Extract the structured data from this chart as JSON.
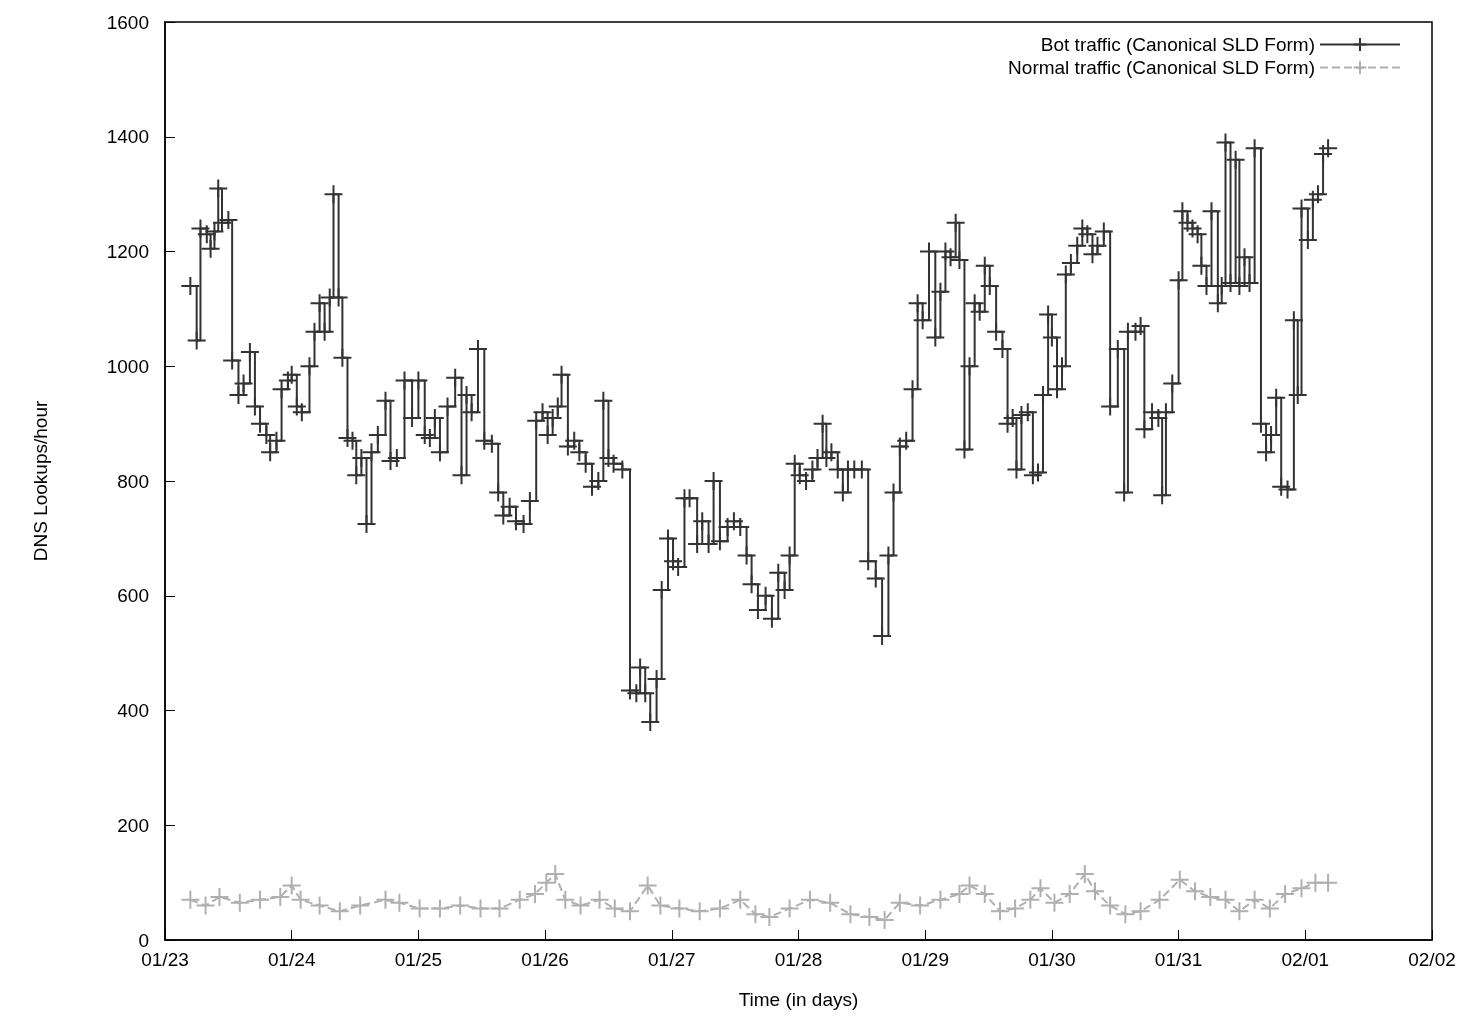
{
  "chart_data": {
    "type": "line",
    "xlabel": "Time (in days)",
    "ylabel": "DNS Lookups/hour",
    "xlim": [
      "--01-23",
      "--02-02"
    ],
    "xticks": [
      {
        "value": "--01-23",
        "label": "01/23"
      },
      {
        "value": "--01-24",
        "label": "01/24"
      },
      {
        "value": "--01-25",
        "label": "01/25"
      },
      {
        "value": "--01-26",
        "label": "01/26"
      },
      {
        "value": "--01-27",
        "label": "01/27"
      },
      {
        "value": "--01-28",
        "label": "01/28"
      },
      {
        "value": "--01-29",
        "label": "01/29"
      },
      {
        "value": "--01-30",
        "label": "01/30"
      },
      {
        "value": "--01-31",
        "label": "01/31"
      },
      {
        "value": "--02-01",
        "label": "02/01"
      },
      {
        "value": "--02-02",
        "label": "02/02"
      }
    ],
    "ylim": [
      0,
      1600
    ],
    "yticks": [
      0,
      200,
      400,
      600,
      800,
      1000,
      1200,
      1400,
      1600
    ],
    "grid": false,
    "legend": "top right",
    "series": [
      {
        "name": "Bot traffic (Canonical SLD Form)",
        "type": "step",
        "color": "#333333",
        "marker": "cross",
        "line_style": "solid",
        "x": [
          "--01-23T04:48",
          "--01-23T06:00",
          "--01-23T06:43",
          "--01-23T07:55",
          "--01-23T08:38",
          "--01-23T09:22",
          "--01-23T10:05",
          "--01-23T10:48",
          "--01-23T12:00",
          "--01-23T12:43",
          "--01-23T13:55",
          "--01-23T14:53",
          "--01-23T16:05",
          "--01-23T17:02",
          "--01-23T18:00",
          "--01-23T19:12",
          "--01-23T19:55",
          "--01-23T21:07",
          "--01-23T22:05",
          "--01-23T23:17",
          "--01-24T00:00",
          "--01-24T00:58",
          "--01-24T01:55",
          "--01-24T03:22",
          "--01-24T04:19",
          "--01-24T05:17",
          "--01-24T06:14",
          "--01-24T07:12",
          "--01-24T07:55",
          "--01-24T08:53",
          "--01-24T09:36",
          "--01-24T10:34",
          "--01-24T11:31",
          "--01-24T12:14",
          "--01-24T13:12",
          "--01-24T14:10",
          "--01-24T15:07",
          "--01-24T16:19",
          "--01-24T17:46",
          "--01-24T18:43",
          "--01-24T19:55",
          "--01-24T21:22",
          "--01-24T22:48",
          "--01-25T00:00",
          "--01-25T01:12",
          "--01-25T02:10",
          "--01-25T03:07",
          "--01-25T04:05",
          "--01-25T05:31",
          "--01-25T06:58",
          "--01-25T08:10",
          "--01-25T09:07",
          "--01-25T10:05",
          "--01-25T11:17",
          "--01-25T12:29",
          "--01-25T13:55",
          "--01-25T15:07",
          "--01-25T16:05",
          "--01-25T17:17",
          "--01-25T18:29",
          "--01-25T19:55",
          "--01-25T21:07",
          "--01-25T22:19",
          "--01-25T23:31",
          "--01-26T00:29",
          "--01-26T01:26",
          "--01-26T02:24",
          "--01-26T03:07",
          "--01-26T04:19",
          "--01-26T05:31",
          "--01-26T06:29",
          "--01-26T07:41",
          "--01-26T08:53",
          "--01-26T10:05",
          "--01-26T11:02",
          "--01-26T12:00",
          "--01-26T12:58",
          "--01-26T14:38",
          "--01-26T16:05",
          "--01-26T17:17",
          "--01-26T18:00",
          "--01-26T18:58",
          "--01-26T19:55",
          "--01-26T21:07",
          "--01-26T22:05",
          "--01-26T23:17",
          "--01-27T00:14",
          "--01-27T01:12",
          "--01-27T02:24",
          "--01-27T03:22",
          "--01-27T04:48",
          "--01-27T05:46",
          "--01-27T06:58",
          "--01-27T07:55",
          "--01-27T09:07",
          "--01-27T10:34",
          "--01-27T11:46",
          "--01-27T12:58",
          "--01-27T14:10",
          "--01-27T15:07",
          "--01-27T16:19",
          "--01-27T17:46",
          "--01-27T18:58",
          "--01-27T20:10",
          "--01-27T21:22",
          "--01-27T22:19",
          "--01-27T23:17",
          "--01-28T00:14",
          "--01-28T01:26",
          "--01-28T02:38",
          "--01-28T03:36",
          "--01-28T04:34",
          "--01-28T05:17",
          "--01-28T06:14",
          "--01-28T07:26",
          "--01-28T08:24",
          "--01-28T09:22",
          "--01-28T10:34",
          "--01-28T12:00",
          "--01-28T13:12",
          "--01-28T14:38",
          "--01-28T15:50",
          "--01-28T17:02",
          "--01-28T18:00",
          "--01-28T19:12",
          "--01-28T20:24",
          "--01-28T21:36",
          "--01-28T22:34",
          "--01-28T23:31",
          "--01-29T00:43",
          "--01-29T01:55",
          "--01-29T02:53",
          "--01-29T03:50",
          "--01-29T04:48",
          "--01-29T05:46",
          "--01-29T06:29",
          "--01-29T07:26",
          "--01-29T08:24",
          "--01-29T09:22",
          "--01-29T10:19",
          "--01-29T11:17",
          "--01-29T12:14",
          "--01-29T13:26",
          "--01-29T14:38",
          "--01-29T15:36",
          "--01-29T16:34",
          "--01-29T17:17",
          "--01-29T18:14",
          "--01-29T19:26",
          "--01-29T20:24",
          "--01-29T21:22",
          "--01-29T22:19",
          "--01-29T23:17",
          "--01-30T00:00",
          "--01-30T00:58",
          "--01-30T01:55",
          "--01-30T02:38",
          "--01-30T03:36",
          "--01-30T04:48",
          "--01-30T05:46",
          "--01-30T06:43",
          "--01-30T07:41",
          "--01-30T08:38",
          "--01-30T09:50",
          "--01-30T11:02",
          "--01-30T12:29",
          "--01-30T13:41",
          "--01-30T14:24",
          "--01-30T15:50",
          "--01-30T16:48",
          "--01-30T17:31",
          "--01-30T18:58",
          "--01-30T20:10",
          "--01-30T20:53",
          "--01-30T21:36",
          "--01-30T22:48",
          "--01-31T00:00",
          "--01-31T00:43",
          "--01-31T01:41",
          "--01-31T02:38",
          "--01-31T03:36",
          "--01-31T04:19",
          "--01-31T05:17",
          "--01-31T06:14",
          "--01-31T07:26",
          "--01-31T08:10",
          "--01-31T08:53",
          "--01-31T09:50",
          "--01-31T10:48",
          "--01-31T11:31",
          "--01-31T12:29",
          "--01-31T13:26",
          "--01-31T14:24",
          "--01-31T15:36",
          "--01-31T16:34",
          "--01-31T17:31",
          "--01-31T18:29",
          "--01-31T19:26",
          "--01-31T20:38",
          "--01-31T21:50",
          "--01-31T22:34",
          "--01-31T23:17",
          "--02-01T00:29",
          "--02-01T01:26",
          "--02-01T02:24",
          "--02-01T03:22",
          "--02-01T04:19"
        ],
        "values": [
          1140,
          1045,
          1240,
          1230,
          1205,
          1235,
          1310,
          1250,
          1255,
          1010,
          950,
          970,
          1025,
          930,
          900,
          880,
          850,
          870,
          960,
          975,
          985,
          930,
          920,
          1000,
          1060,
          1110,
          1060,
          1120,
          1300,
          1120,
          1015,
          875,
          870,
          810,
          840,
          725,
          850,
          880,
          940,
          835,
          840,
          975,
          910,
          975,
          880,
          875,
          910,
          850,
          930,
          980,
          810,
          950,
          920,
          1030,
          870,
          865,
          780,
          740,
          755,
          730,
          725,
          765,
          905,
          920,
          880,
          910,
          930,
          985,
          860,
          870,
          850,
          830,
          790,
          800,
          940,
          840,
          830,
          820,
          435,
          430,
          475,
          430,
          380,
          455,
          610,
          700,
          660,
          650,
          770,
          770,
          690,
          730,
          690,
          800,
          695,
          720,
          730,
          720,
          670,
          620,
          575,
          600,
          560,
          640,
          610,
          670,
          830,
          810,
          800,
          820,
          840,
          900,
          840,
          850,
          820,
          780,
          820,
          820,
          820,
          660,
          630,
          530,
          670,
          780,
          860,
          870,
          960,
          1110,
          1080,
          1200,
          1050,
          1130,
          1200,
          1190,
          1250,
          1185,
          855,
          1000,
          1110,
          1095,
          1175,
          1140,
          1060,
          1030,
          900,
          910,
          820,
          915,
          920,
          810,
          815,
          950,
          1090,
          1050,
          960,
          1000,
          1160,
          1180,
          1210,
          1240,
          1230,
          1195,
          1210,
          1235,
          930,
          1030,
          780,
          1060,
          1060,
          1070,
          890,
          920,
          910,
          775,
          920,
          970,
          1150,
          1270,
          1250,
          1240,
          1230,
          1175,
          1140,
          1270,
          1110,
          1140,
          1390,
          1145,
          1360,
          1140,
          1190,
          1145,
          1380,
          900,
          850,
          880,
          945,
          790,
          785,
          1080,
          950,
          1275,
          1220,
          1290,
          1300,
          1370,
          1380
        ]
      },
      {
        "name": "Normal traffic (Canonical SLD Form)",
        "type": "line",
        "color": "#b0b0b0",
        "marker": "cross",
        "line_style": "dashed",
        "x": [
          "--01-23T04:48",
          "--01-23T07:41",
          "--01-23T10:19",
          "--01-23T14:10",
          "--01-23T18:00",
          "--01-23T21:50",
          "--01-24T00:00",
          "--01-24T01:41",
          "--01-24T05:17",
          "--01-24T09:07",
          "--01-24T12:58",
          "--01-24T17:46",
          "--01-24T20:24",
          "--01-25T00:14",
          "--01-25T04:05",
          "--01-25T07:55",
          "--01-25T11:46",
          "--01-25T15:22",
          "--01-25T19:12",
          "--01-25T22:05",
          "--01-26T00:14",
          "--01-26T01:55",
          "--01-26T03:50",
          "--01-26T06:43",
          "--01-26T10:19",
          "--01-26T13:12",
          "--01-26T16:05",
          "--01-26T19:26",
          "--01-26T21:50",
          "--01-27T01:26",
          "--01-27T05:17",
          "--01-27T09:07",
          "--01-27T12:58",
          "--01-27T15:50",
          "--01-27T18:29",
          "--01-27T22:19",
          "--01-28T02:10",
          "--01-28T06:00",
          "--01-28T09:50",
          "--01-28T13:26",
          "--01-28T16:19",
          "--01-28T19:12",
          "--01-28T23:02",
          "--01-29T02:53",
          "--01-29T06:29",
          "--01-29T08:24",
          "--01-29T11:17",
          "--01-29T14:10",
          "--01-29T17:02",
          "--01-29T19:55",
          "--01-29T21:50",
          "--01-30T00:29",
          "--01-30T03:22",
          "--01-30T06:14",
          "--01-30T08:10",
          "--01-30T11:02",
          "--01-30T13:55",
          "--01-30T16:48",
          "--01-30T20:24",
          "--01-31T00:14",
          "--01-31T03:07",
          "--01-31T06:00",
          "--01-31T08:53",
          "--01-31T11:31",
          "--01-31T14:24",
          "--01-31T17:17",
          "--01-31T20:10",
          "--01-31T23:17",
          "--02-01T01:55",
          "--02-01T04:19"
        ],
        "values": [
          70,
          60,
          75,
          65,
          70,
          75,
          95,
          70,
          60,
          50,
          60,
          70,
          65,
          55,
          55,
          60,
          55,
          55,
          70,
          80,
          100,
          115,
          70,
          60,
          70,
          55,
          50,
          95,
          60,
          55,
          50,
          55,
          70,
          45,
          40,
          55,
          70,
          65,
          45,
          40,
          35,
          65,
          60,
          70,
          80,
          95,
          80,
          50,
          55,
          70,
          90,
          65,
          80,
          115,
          85,
          60,
          45,
          50,
          70,
          105,
          85,
          75,
          70,
          50,
          70,
          55,
          80,
          90,
          100,
          100
        ]
      }
    ]
  }
}
